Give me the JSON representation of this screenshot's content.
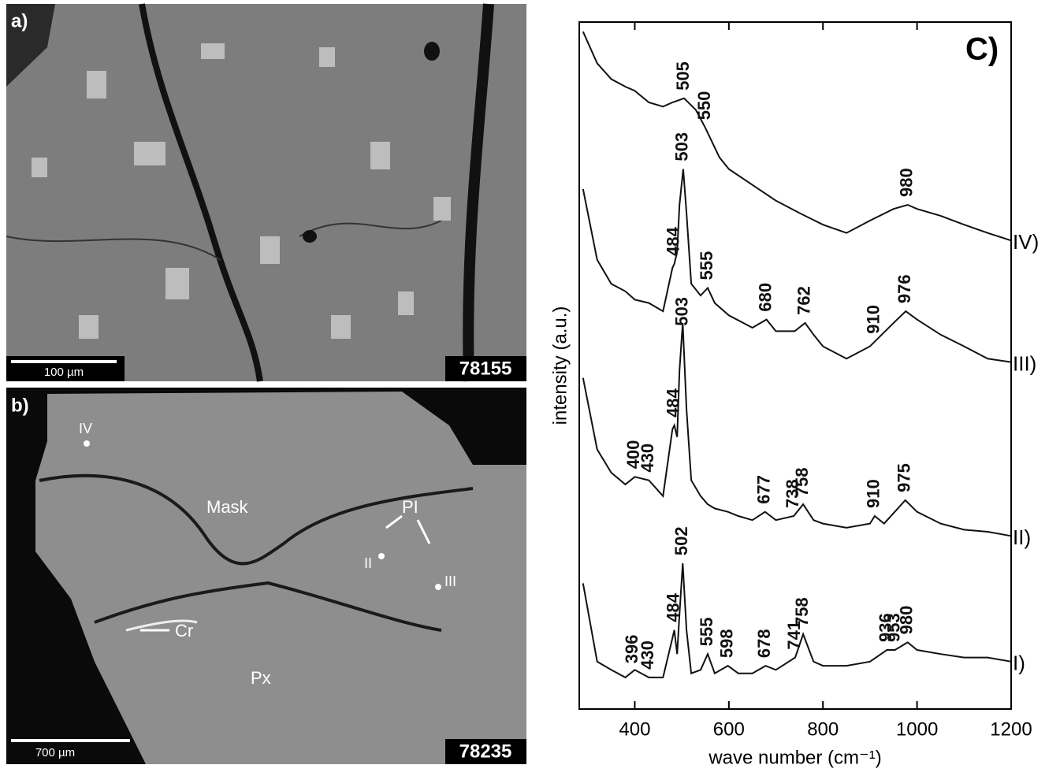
{
  "panels": [
    {
      "label": "a)",
      "scale_bar": "100 µm",
      "sample": "78155"
    },
    {
      "label": "b)",
      "scale_bar": "700 µm",
      "sample": "78235",
      "annotations": [
        "IV",
        "Mask",
        "PI",
        "II",
        "III",
        "Cr",
        "Px"
      ]
    }
  ],
  "chart_data": {
    "type": "line",
    "title": "C)",
    "xlabel": "wave number (cm⁻¹)",
    "ylabel": "intensity (a.u.)",
    "xlim": [
      282,
      1200
    ],
    "xticks": [
      400,
      600,
      800,
      1000,
      1200
    ],
    "ylim": [
      0,
      100
    ],
    "color": "#111111",
    "series": [
      {
        "name": "I)",
        "peaks": [
          396,
          430,
          484,
          502,
          555,
          598,
          678,
          741,
          758,
          936,
          953,
          980
        ],
        "x": [
          290,
          320,
          350,
          380,
          400,
          430,
          460,
          480,
          484,
          490,
          495,
          502,
          510,
          520,
          540,
          555,
          570,
          598,
          620,
          650,
          678,
          700,
          741,
          758,
          780,
          800,
          850,
          900,
          936,
          953,
          980,
          1000,
          1050,
          1100,
          1150,
          1200
        ],
        "values": [
          18.3,
          6.9,
          5.7,
          4.6,
          5.7,
          4.6,
          4.6,
          10.3,
          11.5,
          8.0,
          13.8,
          21.2,
          11.5,
          5.2,
          5.7,
          8.0,
          5.2,
          6.3,
          5.2,
          5.2,
          6.3,
          5.7,
          7.5,
          10.9,
          6.9,
          6.3,
          6.3,
          6.9,
          8.6,
          8.6,
          9.7,
          8.6,
          8.0,
          7.5,
          7.5,
          6.9
        ]
      },
      {
        "name": "II)",
        "peaks": [
          400,
          430,
          484,
          503,
          677,
          738,
          758,
          910,
          975
        ],
        "x": [
          290,
          320,
          350,
          380,
          400,
          430,
          460,
          480,
          484,
          490,
          495,
          502,
          510,
          520,
          540,
          555,
          570,
          598,
          620,
          650,
          677,
          700,
          738,
          758,
          780,
          800,
          850,
          900,
          910,
          930,
          975,
          1000,
          1050,
          1100,
          1150,
          1200
        ],
        "values": [
          48.2,
          37.8,
          34.4,
          32.7,
          33.8,
          33.3,
          31.0,
          40.7,
          41.3,
          39.6,
          49.3,
          56.2,
          43.6,
          33.3,
          31.0,
          29.8,
          29.2,
          28.7,
          28.1,
          27.5,
          28.7,
          27.5,
          28.1,
          29.8,
          27.5,
          27.0,
          26.4,
          27.0,
          28.1,
          27.0,
          30.4,
          28.7,
          27.0,
          26.1,
          25.8,
          25.2
        ]
      },
      {
        "name": "III)",
        "peaks": [
          484,
          503,
          555,
          680,
          762,
          910,
          976
        ],
        "x": [
          290,
          320,
          350,
          380,
          400,
          430,
          460,
          480,
          484,
          490,
          495,
          503,
          510,
          520,
          540,
          555,
          570,
          600,
          650,
          680,
          700,
          740,
          762,
          780,
          800,
          850,
          900,
          950,
          976,
          1000,
          1050,
          1100,
          1150,
          1200
        ],
        "values": [
          75.7,
          65.4,
          61.9,
          60.8,
          59.6,
          59.1,
          57.9,
          64.2,
          64.8,
          66.5,
          73.4,
          78.6,
          72.2,
          61.9,
          60.2,
          61.3,
          59.1,
          57.3,
          55.5,
          56.7,
          55.0,
          55.0,
          56.2,
          54.5,
          52.8,
          51.0,
          52.8,
          56.2,
          57.9,
          56.7,
          54.5,
          52.8,
          51.0,
          50.5
        ]
      },
      {
        "name": "IV)",
        "peaks": [
          505,
          550,
          980
        ],
        "x": [
          290,
          320,
          350,
          380,
          400,
          430,
          460,
          480,
          505,
          530,
          550,
          580,
          600,
          650,
          700,
          750,
          800,
          850,
          900,
          950,
          980,
          1000,
          1050,
          1100,
          1150,
          1200
        ],
        "values": [
          98.6,
          94.0,
          91.7,
          90.6,
          90.0,
          88.3,
          87.7,
          88.3,
          88.9,
          87.2,
          84.6,
          80.3,
          78.6,
          76.3,
          74.0,
          72.2,
          70.5,
          69.3,
          71.1,
          72.8,
          73.4,
          72.8,
          71.8,
          70.5,
          69.3,
          68.2
        ]
      }
    ]
  }
}
